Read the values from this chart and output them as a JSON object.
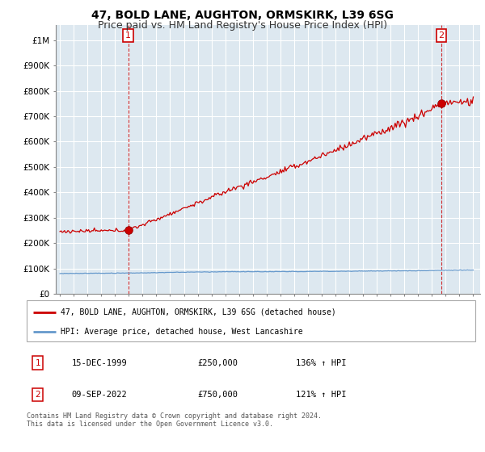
{
  "title": "47, BOLD LANE, AUGHTON, ORMSKIRK, L39 6SG",
  "subtitle": "Price paid vs. HM Land Registry's House Price Index (HPI)",
  "title_fontsize": 10,
  "subtitle_fontsize": 9,
  "background_color": "#ffffff",
  "plot_bg_color": "#dde8f0",
  "grid_color": "#ffffff",
  "ylabel_ticks": [
    "£0",
    "£100K",
    "£200K",
    "£300K",
    "£400K",
    "£500K",
    "£600K",
    "£700K",
    "£800K",
    "£900K",
    "£1M"
  ],
  "ytick_values": [
    0,
    100000,
    200000,
    300000,
    400000,
    500000,
    600000,
    700000,
    800000,
    900000,
    1000000
  ],
  "ylim": [
    0,
    1060000
  ],
  "xlim_start": 1994.7,
  "xlim_end": 2025.5,
  "transaction1": {
    "year": 1999.958,
    "price": 250000,
    "label": "1"
  },
  "transaction2": {
    "year": 2022.69,
    "price": 750000,
    "label": "2"
  },
  "legend_line1": "47, BOLD LANE, AUGHTON, ORMSKIRK, L39 6SG (detached house)",
  "legend_line2": "HPI: Average price, detached house, West Lancashire",
  "table_rows": [
    {
      "num": "1",
      "date": "15-DEC-1999",
      "price": "£250,000",
      "change": "136% ↑ HPI"
    },
    {
      "num": "2",
      "date": "09-SEP-2022",
      "price": "£750,000",
      "change": "121% ↑ HPI"
    }
  ],
  "footer": "Contains HM Land Registry data © Crown copyright and database right 2024.\nThis data is licensed under the Open Government Licence v3.0.",
  "house_color": "#cc0000",
  "hpi_color": "#6699cc",
  "marker_color": "#cc0000"
}
